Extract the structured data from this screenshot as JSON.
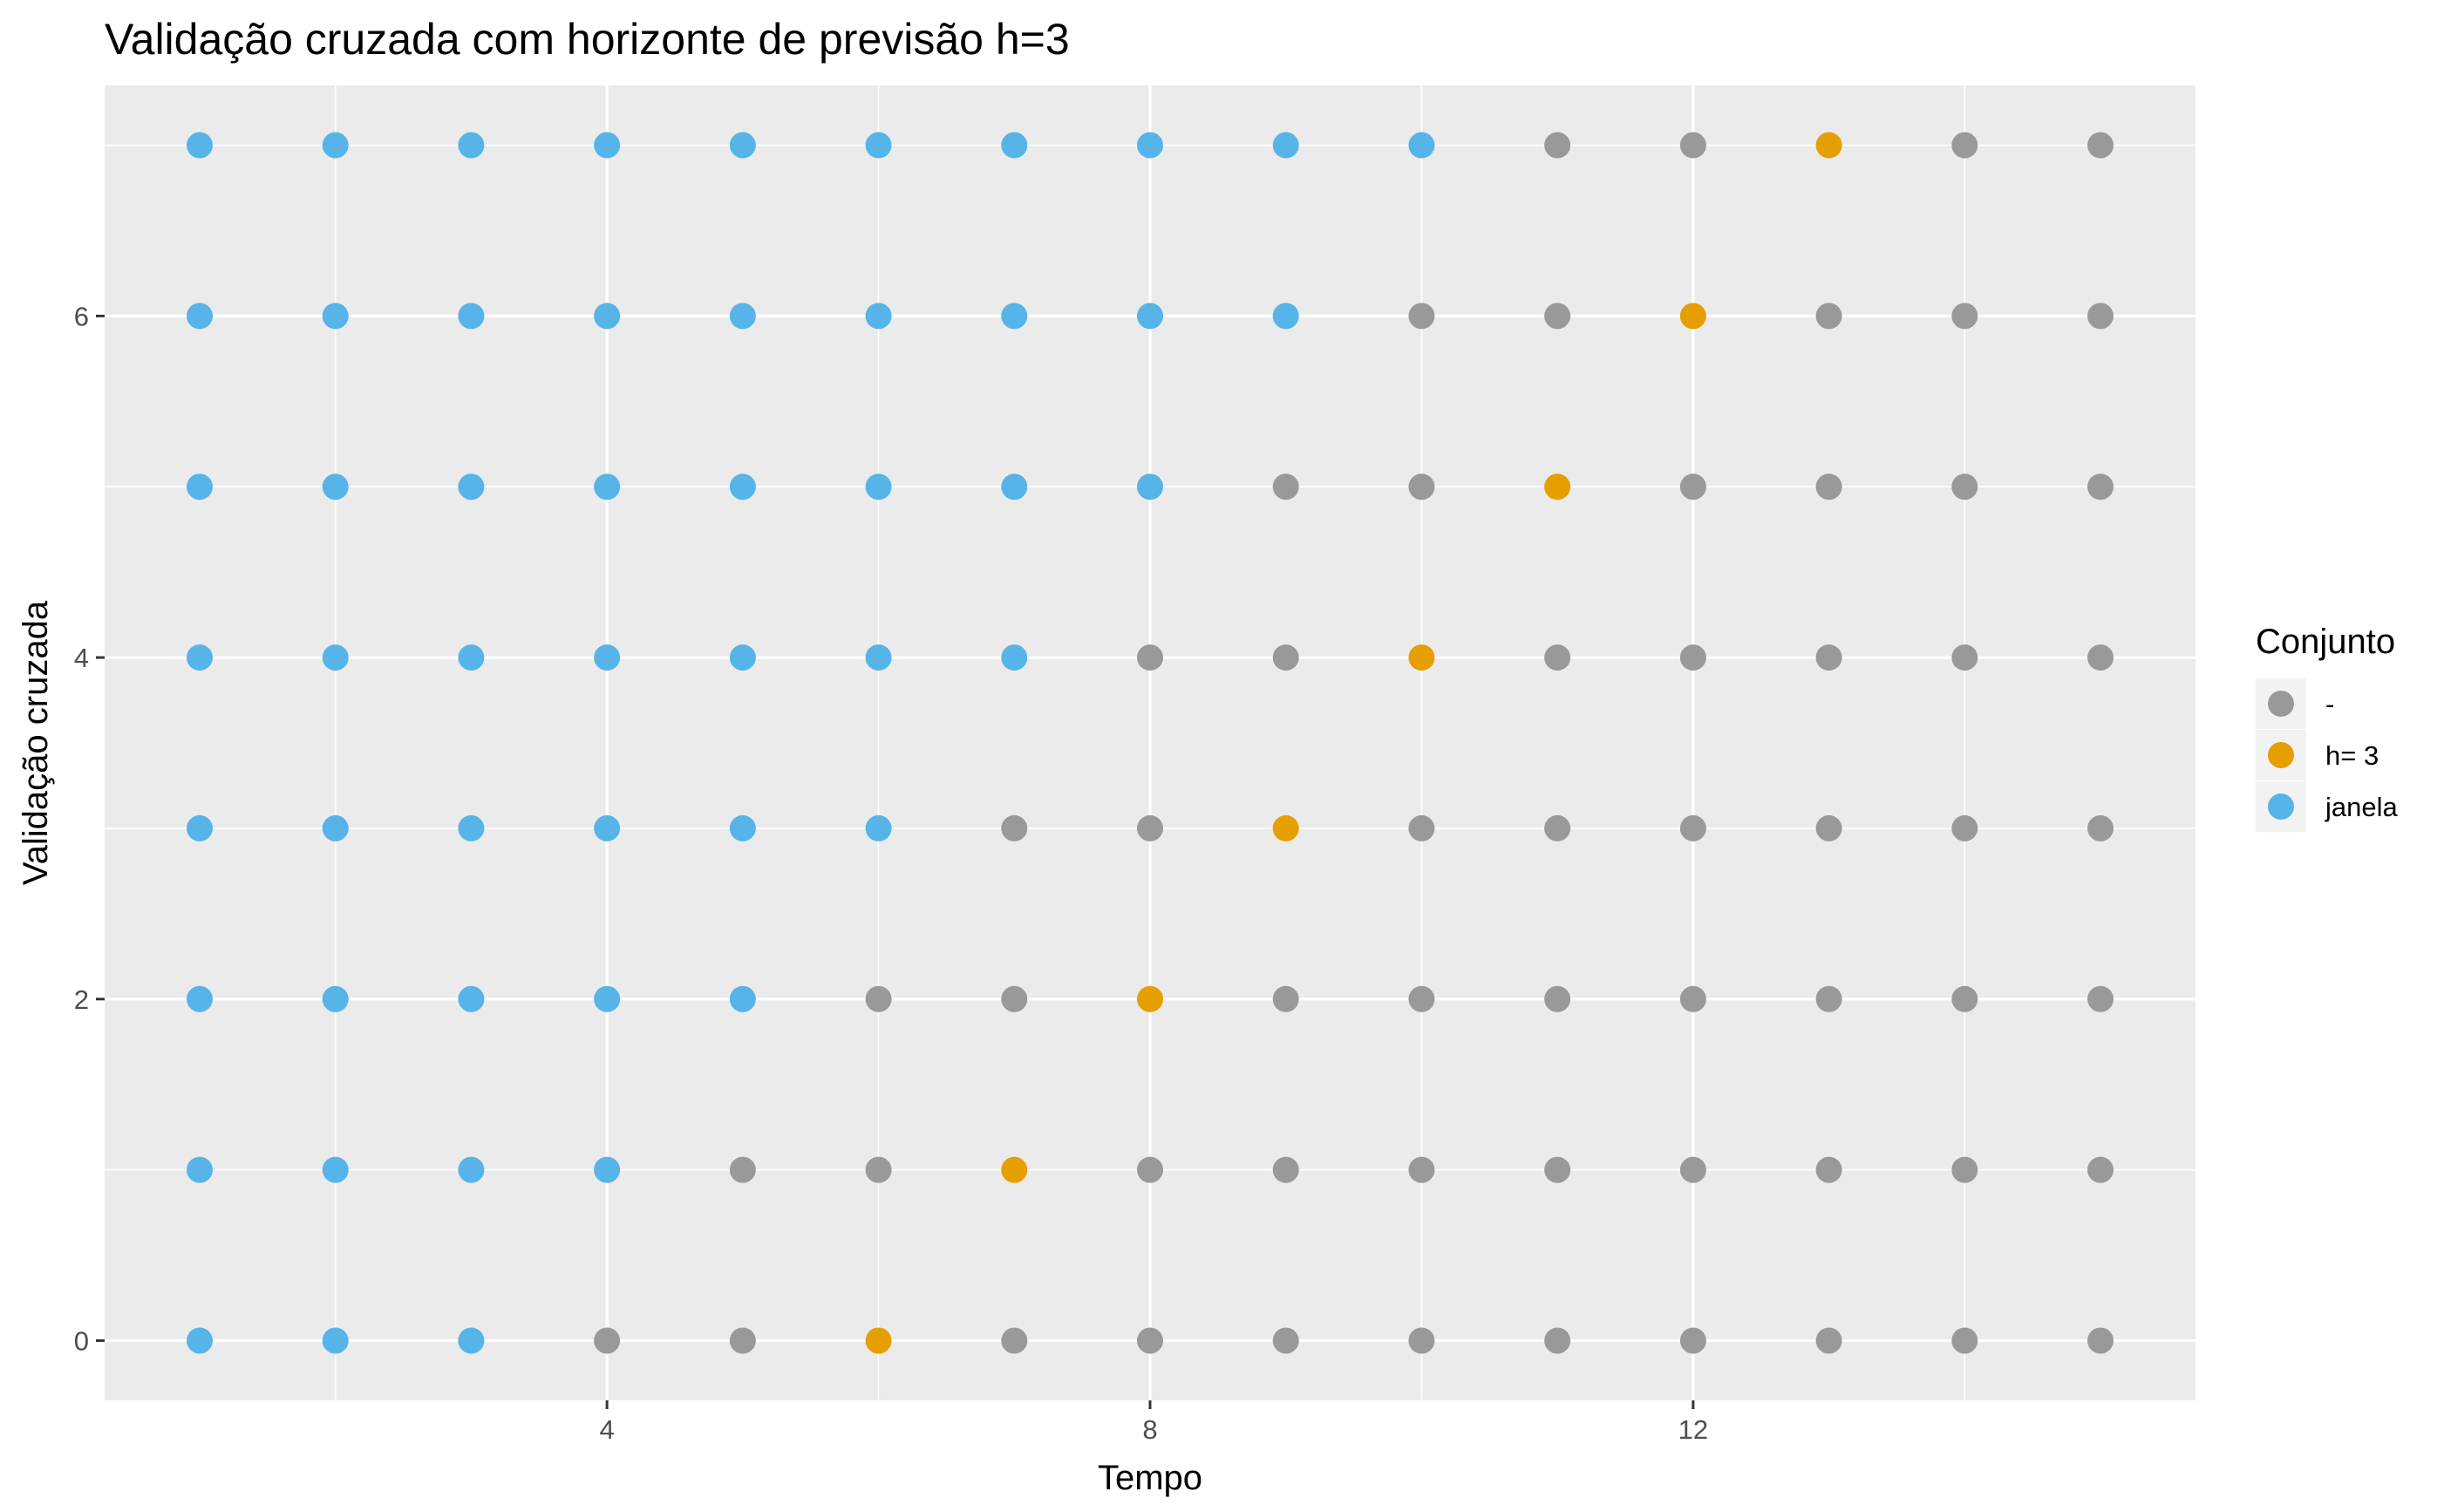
{
  "chart_data": {
    "type": "scatter",
    "title": "Validação cruzada com horizonte de previsão h=3",
    "xlabel": "Tempo",
    "ylabel": "Validação cruzada",
    "xlim": [
      0.3,
      15.7
    ],
    "ylim": [
      -0.35,
      7.35
    ],
    "x_ticks": [
      4,
      8,
      12
    ],
    "y_ticks": [
      0,
      2,
      4,
      6
    ],
    "grid": true,
    "legend": {
      "title": "Conjunto",
      "position": "right",
      "entries": [
        {
          "label": "-",
          "color": "#999999"
        },
        {
          "label": "h= 3",
          "color": "#E69F00"
        },
        {
          "label": "janela",
          "color": "#56B4E9"
        }
      ]
    },
    "colors": {
      "-": "#999999",
      "h= 3": "#E69F00",
      "janela": "#56B4E9"
    },
    "x": [
      1,
      2,
      3,
      4,
      5,
      6,
      7,
      8,
      9,
      10,
      11,
      12,
      13,
      14,
      15
    ],
    "rows": [
      {
        "y": 0,
        "set": [
          "janela",
          "janela",
          "janela",
          "-",
          "-",
          "h= 3",
          "-",
          "-",
          "-",
          "-",
          "-",
          "-",
          "-",
          "-",
          "-"
        ]
      },
      {
        "y": 1,
        "set": [
          "janela",
          "janela",
          "janela",
          "janela",
          "-",
          "-",
          "h= 3",
          "-",
          "-",
          "-",
          "-",
          "-",
          "-",
          "-",
          "-"
        ]
      },
      {
        "y": 2,
        "set": [
          "janela",
          "janela",
          "janela",
          "janela",
          "janela",
          "-",
          "-",
          "h= 3",
          "-",
          "-",
          "-",
          "-",
          "-",
          "-",
          "-"
        ]
      },
      {
        "y": 3,
        "set": [
          "janela",
          "janela",
          "janela",
          "janela",
          "janela",
          "janela",
          "-",
          "-",
          "h= 3",
          "-",
          "-",
          "-",
          "-",
          "-",
          "-"
        ]
      },
      {
        "y": 4,
        "set": [
          "janela",
          "janela",
          "janela",
          "janela",
          "janela",
          "janela",
          "janela",
          "-",
          "-",
          "h= 3",
          "-",
          "-",
          "-",
          "-",
          "-"
        ]
      },
      {
        "y": 5,
        "set": [
          "janela",
          "janela",
          "janela",
          "janela",
          "janela",
          "janela",
          "janela",
          "janela",
          "-",
          "-",
          "h= 3",
          "-",
          "-",
          "-",
          "-"
        ]
      },
      {
        "y": 6,
        "set": [
          "janela",
          "janela",
          "janela",
          "janela",
          "janela",
          "janela",
          "janela",
          "janela",
          "janela",
          "-",
          "-",
          "h= 3",
          "-",
          "-",
          "-"
        ]
      },
      {
        "y": 7,
        "set": [
          "janela",
          "janela",
          "janela",
          "janela",
          "janela",
          "janela",
          "janela",
          "janela",
          "janela",
          "janela",
          "-",
          "-",
          "h= 3",
          "-",
          "-"
        ]
      }
    ]
  }
}
